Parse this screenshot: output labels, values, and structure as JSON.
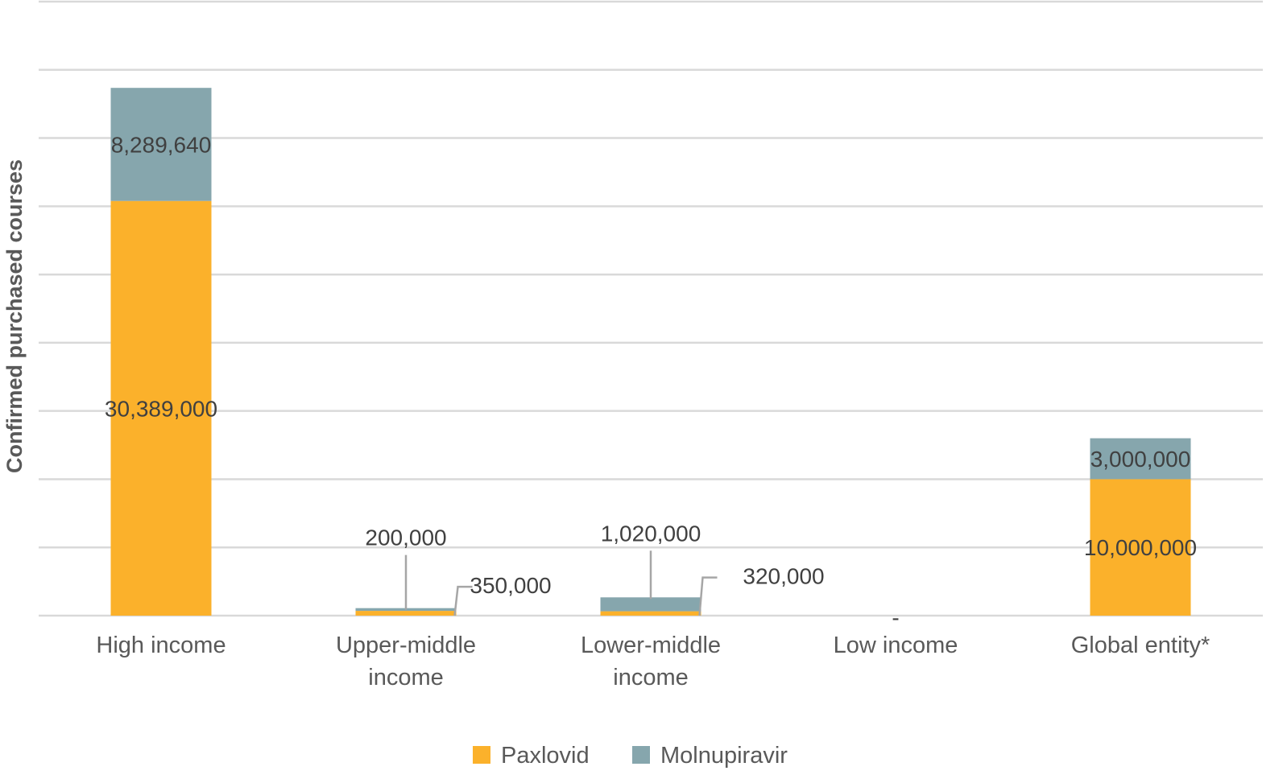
{
  "chart_data": {
    "type": "bar",
    "stacked": true,
    "title": "",
    "xlabel": "",
    "ylabel": "Confirmed purchased courses",
    "ylim": [
      0,
      45000000
    ],
    "grid": true,
    "y_ticks_shown": false,
    "legend_position": "bottom",
    "categories": [
      [
        "High income"
      ],
      [
        "Upper-middle",
        "income"
      ],
      [
        "Lower-middle",
        "income"
      ],
      [
        "Low income"
      ],
      [
        "Global entity*"
      ]
    ],
    "series": [
      {
        "name": "Paxlovid",
        "color": "#fbb12b",
        "values": [
          30389000,
          350000,
          320000,
          0,
          10000000
        ],
        "labels": [
          "30,389,000",
          "350,000",
          "320,000",
          "-",
          "10,000,000"
        ]
      },
      {
        "name": "Molnupiravir",
        "color": "#86a6ad",
        "values": [
          8289640,
          200000,
          1020000,
          0,
          3000000
        ],
        "labels": [
          "8,289,640",
          "200,000",
          "1,020,000",
          "",
          "3,000,000"
        ]
      }
    ]
  }
}
